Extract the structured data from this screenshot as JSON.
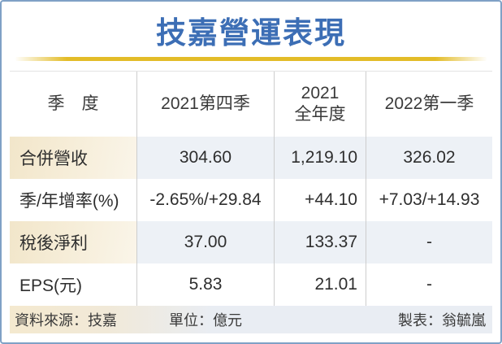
{
  "title": "技嘉營運表現",
  "colors": {
    "title_blue": "#3C6EB5",
    "divider_gold": "#E3BC28",
    "frame_blue": "#7FA1C6",
    "label_cream": "#F2E6CA",
    "value_tint": "#EDF1F6",
    "footer_right_tint": "#E9EDF3",
    "text_dark": "#2E2E2E"
  },
  "table": {
    "header": {
      "quarter": "季　度",
      "q4_2021": "2021第四季",
      "fy_2021_line1": "2021",
      "fy_2021_line2": "全年度",
      "q1_2022": "2022第一季"
    },
    "rows": [
      {
        "label": "合併營收",
        "values": [
          "304.60",
          "1,219.10",
          "326.02"
        ]
      },
      {
        "label": "季/年增率(%)",
        "values": [
          "-2.65%/+29.84",
          "+44.10",
          "+7.03/+14.93"
        ]
      },
      {
        "label": "稅後淨利",
        "values": [
          "37.00",
          "133.37",
          "-"
        ]
      },
      {
        "label": "EPS(元)",
        "values": [
          "5.83",
          "21.01",
          "-"
        ]
      }
    ]
  },
  "footer": {
    "source": "資料來源：技嘉",
    "unit": "單位：億元",
    "credit": "製表：翁毓嵐"
  },
  "chart_data": {
    "type": "table",
    "title": "技嘉營運表現",
    "columns": [
      "季度",
      "2021第四季",
      "2021全年度",
      "2022第一季"
    ],
    "rows": [
      [
        "合併營收",
        "304.60",
        "1,219.10",
        "326.02"
      ],
      [
        "季/年增率(%)",
        "-2.65%/+29.84",
        "+44.10",
        "+7.03/+14.93"
      ],
      [
        "稅後淨利",
        "37.00",
        "133.37",
        "-"
      ],
      [
        "EPS(元)",
        "5.83",
        "21.01",
        "-"
      ]
    ],
    "source_label": "資料來源：技嘉",
    "unit_label": "單位：億元",
    "credit_label": "製表：翁毓嵐"
  }
}
